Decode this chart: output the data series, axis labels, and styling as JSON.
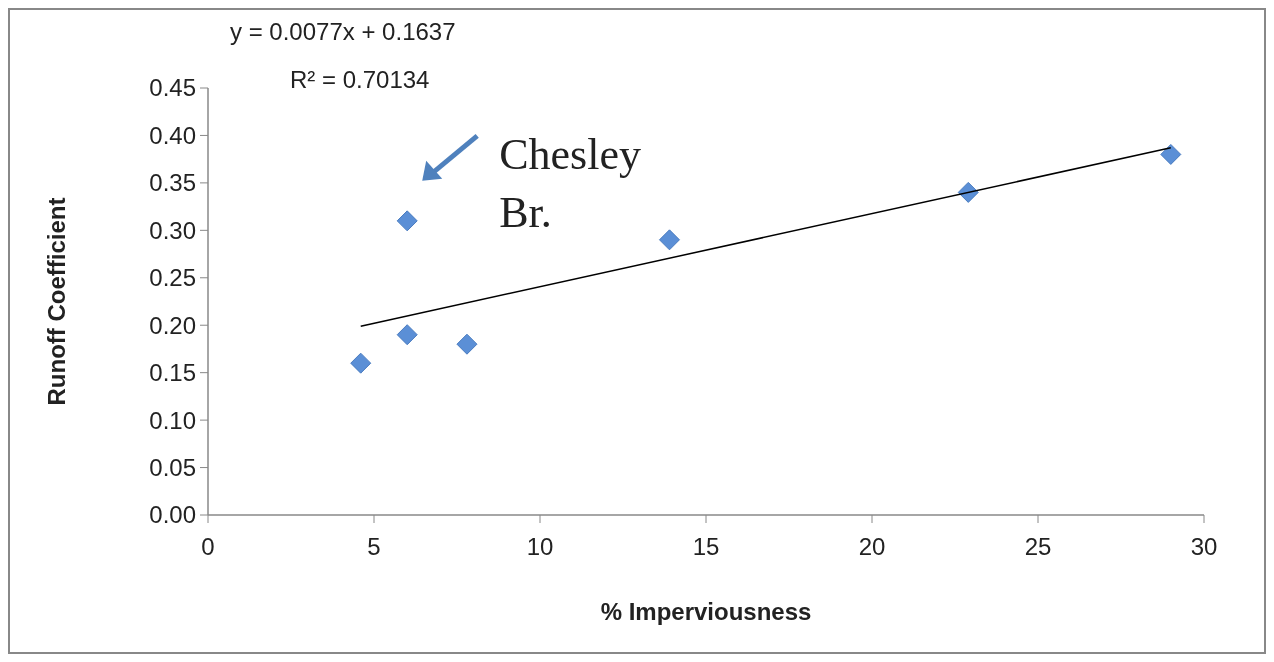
{
  "chart_data": {
    "type": "scatter",
    "xlabel": "% Imperviousness",
    "ylabel": "Runoff Coefficient",
    "series": [
      {
        "color": "#5b8fd6",
        "x": [
          4.6,
          6,
          6,
          7.8,
          13.9,
          22.9,
          29
        ],
        "values": [
          0.16,
          0.19,
          0.31,
          0.18,
          0.29,
          0.34,
          0.38
        ],
        "marker": "diamond"
      },
      {
        "type": "line",
        "color": "#000000",
        "x": [
          4.6,
          29
        ],
        "values": [
          0.199,
          0.387
        ]
      }
    ],
    "xlim": [
      0,
      30
    ],
    "xticks": [
      0,
      5,
      10,
      15,
      20,
      25,
      30
    ],
    "ylim": [
      0,
      0.45
    ],
    "yticks": [
      {
        "value": 0,
        "label": "0.00"
      },
      {
        "value": 0.05,
        "label": "0.05"
      },
      {
        "value": 0.1,
        "label": "0.10"
      },
      {
        "value": 0.15,
        "label": "0.15"
      },
      {
        "value": 0.2,
        "label": "0.20"
      },
      {
        "value": 0.25,
        "label": "0.25"
      },
      {
        "value": 0.3,
        "label": "0.30"
      },
      {
        "value": 0.35,
        "label": "0.35"
      },
      {
        "value": 0.4,
        "label": "0.40"
      },
      {
        "value": 0.45,
        "label": "0.45"
      }
    ],
    "grid": false,
    "annotations": [
      "y = 0.0077x + 0.1637",
      "R² = 0.70134",
      {
        "text": "Chesley Br.",
        "x": 6,
        "y": 0.31
      }
    ]
  }
}
